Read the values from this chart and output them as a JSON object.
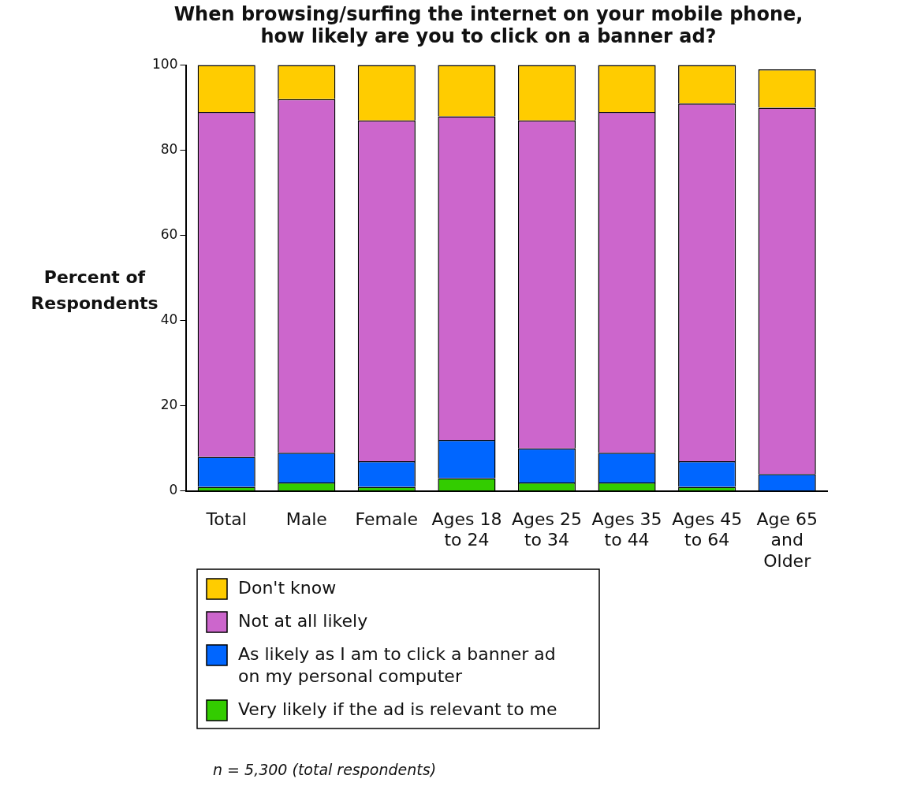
{
  "chart_data": {
    "type": "bar",
    "stacked": true,
    "title": "When browsing/surfing the internet on your mobile phone, how likely are you to click on a banner ad?",
    "ylabel": "Percent of Respondents",
    "categories": [
      "Total",
      "Male",
      "Female",
      "Ages 18 to 24",
      "Ages 25 to 34",
      "Ages 35 to 44",
      "Ages 45 to 64",
      "Age 65 and Older"
    ],
    "series": [
      {
        "name": "Very likely if the ad is relevant to me",
        "color": "#33cc00",
        "values": [
          1,
          2,
          1,
          3,
          2,
          2,
          1,
          0
        ]
      },
      {
        "name": "As likely as I am to click a banner ad on my personal computer",
        "color": "#0066ff",
        "values": [
          7,
          7,
          6,
          9,
          8,
          7,
          6,
          4
        ]
      },
      {
        "name": "Not at all likely",
        "color": "#cc66cc",
        "values": [
          81,
          83,
          80,
          76,
          77,
          80,
          84,
          86
        ]
      },
      {
        "name": "Don't know",
        "color": "#ffcc00",
        "values": [
          11,
          8,
          13,
          12,
          13,
          11,
          9,
          9
        ]
      }
    ],
    "ylim": [
      0,
      100
    ],
    "yticks": [
      0,
      20,
      40,
      60,
      80,
      100
    ],
    "grid": false,
    "legend": "bottom left",
    "annotations": [
      "n = 5,300 (total respondents)"
    ]
  }
}
